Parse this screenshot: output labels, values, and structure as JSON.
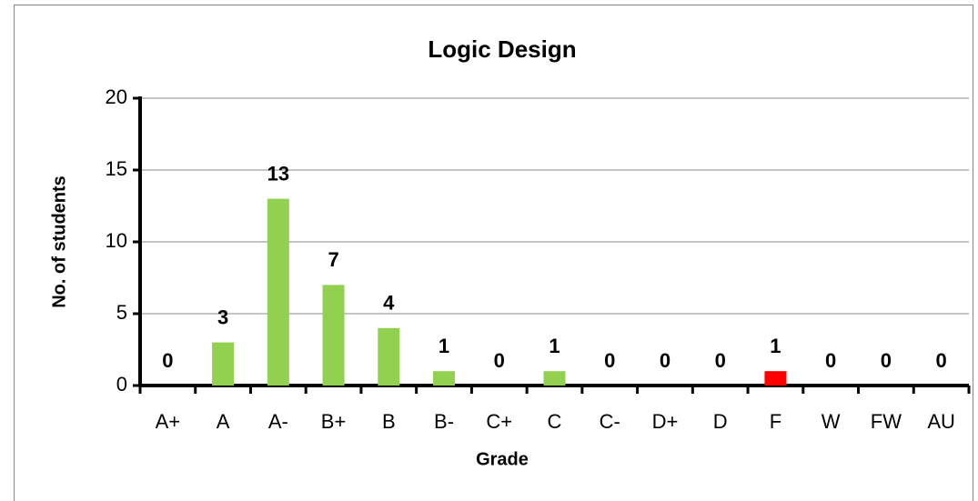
{
  "chart_data": {
    "type": "bar",
    "title": "Logic Design",
    "x_label": "Grade",
    "y_label": "No. of students",
    "categories": [
      "A+",
      "A",
      "A-",
      "B+",
      "B",
      "B-",
      "C+",
      "C",
      "C-",
      "D+",
      "D",
      "F",
      "W",
      "FW",
      "AU"
    ],
    "values": [
      0,
      3,
      13,
      7,
      4,
      1,
      0,
      1,
      0,
      0,
      0,
      1,
      0,
      0,
      0
    ],
    "colors": [
      "#92d050",
      "#92d050",
      "#92d050",
      "#92d050",
      "#92d050",
      "#92d050",
      "#92d050",
      "#92d050",
      "#92d050",
      "#92d050",
      "#92d050",
      "#ff0000",
      "#92d050",
      "#92d050",
      "#92d050"
    ],
    "ylim": [
      0,
      20
    ],
    "yticks": [
      0,
      5,
      10,
      15,
      20
    ],
    "grid": true
  }
}
